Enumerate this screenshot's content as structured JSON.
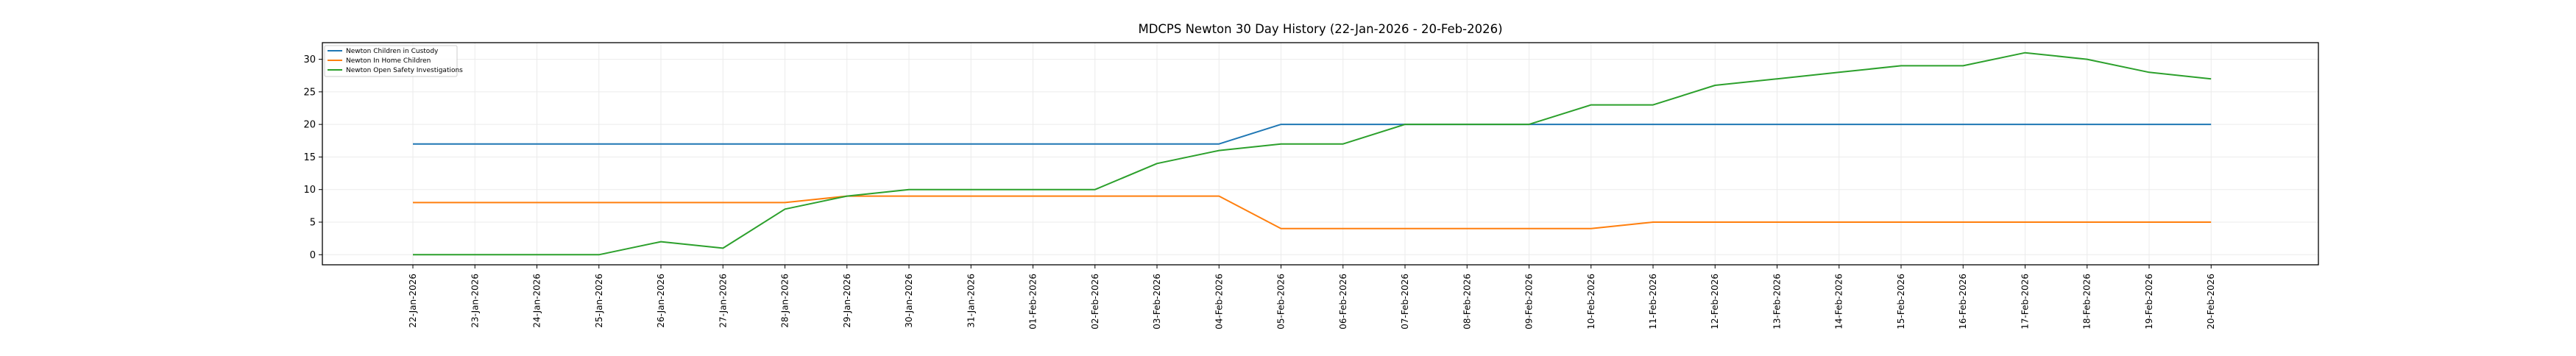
{
  "chart_data": {
    "type": "line",
    "title": "MDCPS Newton 30 Day History (22-Jan-2026 - 20-Feb-2026)",
    "xlabel": "",
    "ylabel": "",
    "x": [
      "22-Jan-2026",
      "23-Jan-2026",
      "24-Jan-2026",
      "25-Jan-2026",
      "26-Jan-2026",
      "27-Jan-2026",
      "28-Jan-2026",
      "29-Jan-2026",
      "30-Jan-2026",
      "31-Jan-2026",
      "01-Feb-2026",
      "02-Feb-2026",
      "03-Feb-2026",
      "04-Feb-2026",
      "05-Feb-2026",
      "06-Feb-2026",
      "07-Feb-2026",
      "08-Feb-2026",
      "09-Feb-2026",
      "10-Feb-2026",
      "11-Feb-2026",
      "12-Feb-2026",
      "13-Feb-2026",
      "14-Feb-2026",
      "15-Feb-2026",
      "16-Feb-2026",
      "17-Feb-2026",
      "18-Feb-2026",
      "19-Feb-2026",
      "20-Feb-2026"
    ],
    "series": [
      {
        "name": "Newton Children in Custody",
        "color": "#1f77b4",
        "values": [
          17,
          17,
          17,
          17,
          17,
          17,
          17,
          17,
          17,
          17,
          17,
          17,
          17,
          17,
          20,
          20,
          20,
          20,
          20,
          20,
          20,
          20,
          20,
          20,
          20,
          20,
          20,
          20,
          20,
          20
        ]
      },
      {
        "name": "Newton In Home Children",
        "color": "#ff7f0e",
        "values": [
          8,
          8,
          8,
          8,
          8,
          8,
          8,
          9,
          9,
          9,
          9,
          9,
          9,
          9,
          4,
          4,
          4,
          4,
          4,
          4,
          5,
          5,
          5,
          5,
          5,
          5,
          5,
          5,
          5,
          5
        ]
      },
      {
        "name": "Newton Open Safety Investigations",
        "color": "#2ca02c",
        "values": [
          0,
          0,
          0,
          0,
          2,
          1,
          7,
          9,
          10,
          10,
          10,
          10,
          14,
          16,
          17,
          17,
          20,
          20,
          20,
          23,
          23,
          26,
          27,
          28,
          29,
          29,
          31,
          30,
          28,
          27
        ]
      }
    ],
    "yticks": [
      0,
      5,
      10,
      15,
      20,
      25,
      30
    ],
    "ylim": [
      -1.55,
      32.55
    ],
    "xlim_index": [
      -1.46,
      30.73
    ],
    "grid": true,
    "legend": "upper-left"
  }
}
